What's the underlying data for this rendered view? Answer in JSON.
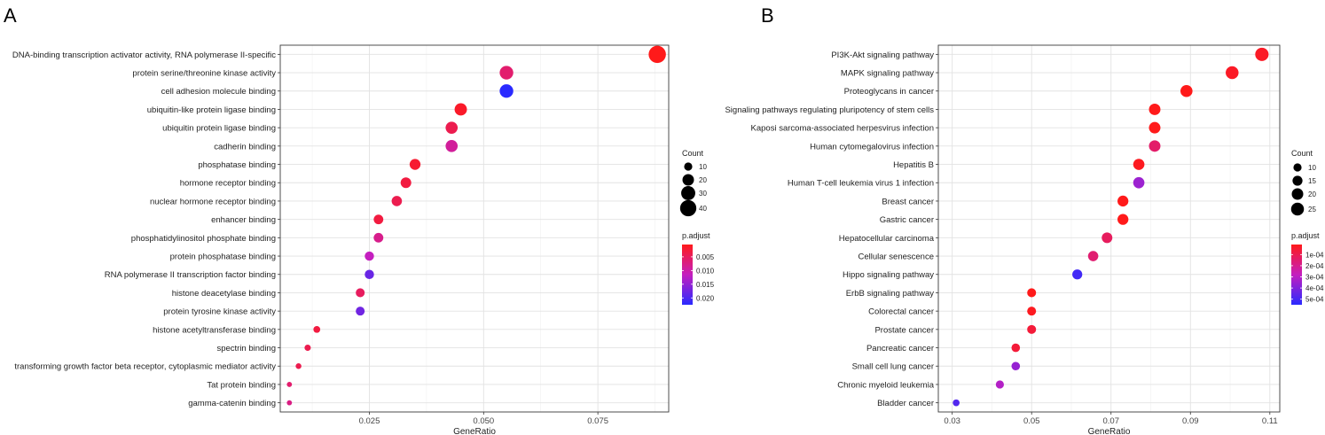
{
  "chart_data": [
    {
      "type": "scatter",
      "panel_label": "A",
      "title": "",
      "xlabel": "GeneRatio",
      "ylabel": "",
      "xlim": [
        0.0055,
        0.0905
      ],
      "xticks": [
        0.025,
        0.05,
        0.075
      ],
      "xtick_labels": [
        "0.025",
        "0.050",
        "0.075"
      ],
      "grid": true,
      "categories": [
        "DNA-binding transcription activator activity, RNA polymerase II-specific",
        "protein serine/threonine kinase activity",
        "cell adhesion molecule binding",
        "ubiquitin-like protein ligase binding",
        "ubiquitin protein ligase binding",
        "cadherin binding",
        "phosphatase binding",
        "hormone receptor binding",
        "nuclear hormone receptor binding",
        "enhancer binding",
        "phosphatidylinositol phosphate binding",
        "protein phosphatase binding",
        "RNA polymerase II transcription factor binding",
        "histone deacetylase binding",
        "protein tyrosine kinase activity",
        "histone acetyltransferase binding",
        "spectrin binding",
        "transforming growth factor beta receptor, cytoplasmic mediator activity",
        "Tat protein binding",
        "gamma-catenin binding"
      ],
      "gene_ratio": [
        0.088,
        0.055,
        0.055,
        0.045,
        0.043,
        0.043,
        0.035,
        0.033,
        0.031,
        0.027,
        0.027,
        0.025,
        0.025,
        0.023,
        0.023,
        0.0135,
        0.0115,
        0.0095,
        0.0075,
        0.0075
      ],
      "count": [
        45,
        28,
        28,
        23,
        22,
        22,
        18,
        17,
        16,
        14,
        14,
        13,
        13,
        12,
        12,
        7,
        6,
        5,
        4,
        4
      ],
      "p_adjust": [
        0.0005,
        0.006,
        0.0225,
        0.0015,
        0.004,
        0.009,
        0.002,
        0.003,
        0.004,
        0.003,
        0.008,
        0.0115,
        0.018,
        0.005,
        0.0175,
        0.003,
        0.004,
        0.004,
        0.006,
        0.0075
      ],
      "size_legend": {
        "title": "Count",
        "values": [
          10,
          20,
          30,
          40
        ],
        "labels": [
          "10",
          "20",
          "30",
          "40"
        ]
      },
      "color_legend": {
        "title": "p.adjust",
        "min": 0.0005,
        "max": 0.0225,
        "low_color": "#ff1a1a",
        "high_color": "#2a2aff",
        "ticks": [
          0.005,
          0.01,
          0.015,
          0.02
        ],
        "tick_labels": [
          "0.005",
          "0.010",
          "0.015",
          "0.020"
        ]
      }
    },
    {
      "type": "scatter",
      "panel_label": "B",
      "title": "",
      "xlabel": "GeneRatio",
      "ylabel": "",
      "xlim": [
        0.0265,
        0.1125
      ],
      "xticks": [
        0.03,
        0.05,
        0.07,
        0.09,
        0.11
      ],
      "xtick_labels": [
        "0.03",
        "0.05",
        "0.07",
        "0.09",
        "0.11"
      ],
      "grid": true,
      "categories": [
        "PI3K-Akt signaling pathway",
        "MAPK signaling pathway",
        "Proteoglycans in cancer",
        "Signaling pathways regulating pluripotency of stem cells",
        "Kaposi sarcoma-associated herpesvirus infection",
        "Human cytomegalovirus infection",
        "Hepatitis B",
        "Human T-cell leukemia virus 1 infection",
        "Breast cancer",
        "Gastric cancer",
        "Hepatocellular carcinoma",
        "Cellular senescence",
        "Hippo signaling pathway",
        "ErbB signaling pathway",
        "Colorectal cancer",
        "Prostate cancer",
        "Pancreatic cancer",
        "Small cell lung cancer",
        "Chronic myeloid leukemia",
        "Bladder cancer"
      ],
      "gene_ratio": [
        0.108,
        0.1005,
        0.089,
        0.081,
        0.081,
        0.081,
        0.077,
        0.077,
        0.073,
        0.073,
        0.069,
        0.0655,
        0.0615,
        0.05,
        0.05,
        0.05,
        0.046,
        0.046,
        0.042,
        0.031
      ],
      "count": [
        27,
        25,
        22,
        20,
        20,
        20,
        19,
        19,
        18,
        18,
        17,
        16,
        15,
        12,
        12,
        12,
        11,
        11,
        10,
        7
      ],
      "p_adjust": [
        3e-05,
        3e-05,
        1e-05,
        1e-05,
        1e-05,
        0.00014,
        2e-05,
        0.00035,
        1e-05,
        1e-05,
        0.00012,
        0.00015,
        0.00051,
        1e-05,
        2e-05,
        6e-05,
        6e-05,
        0.00036,
        0.00031,
        0.00048
      ],
      "size_legend": {
        "title": "Count",
        "values": [
          10,
          15,
          20,
          25
        ],
        "labels": [
          "10",
          "15",
          "20",
          "25"
        ]
      },
      "color_legend": {
        "title": "p.adjust",
        "min": 1e-05,
        "max": 0.00055,
        "low_color": "#ff1a1a",
        "high_color": "#2a2aff",
        "ticks": [
          0.0001,
          0.0002,
          0.0003,
          0.0004,
          0.0005
        ],
        "tick_labels": [
          "1e-04",
          "2e-04",
          "3e-04",
          "4e-04",
          "5e-04"
        ]
      }
    }
  ]
}
